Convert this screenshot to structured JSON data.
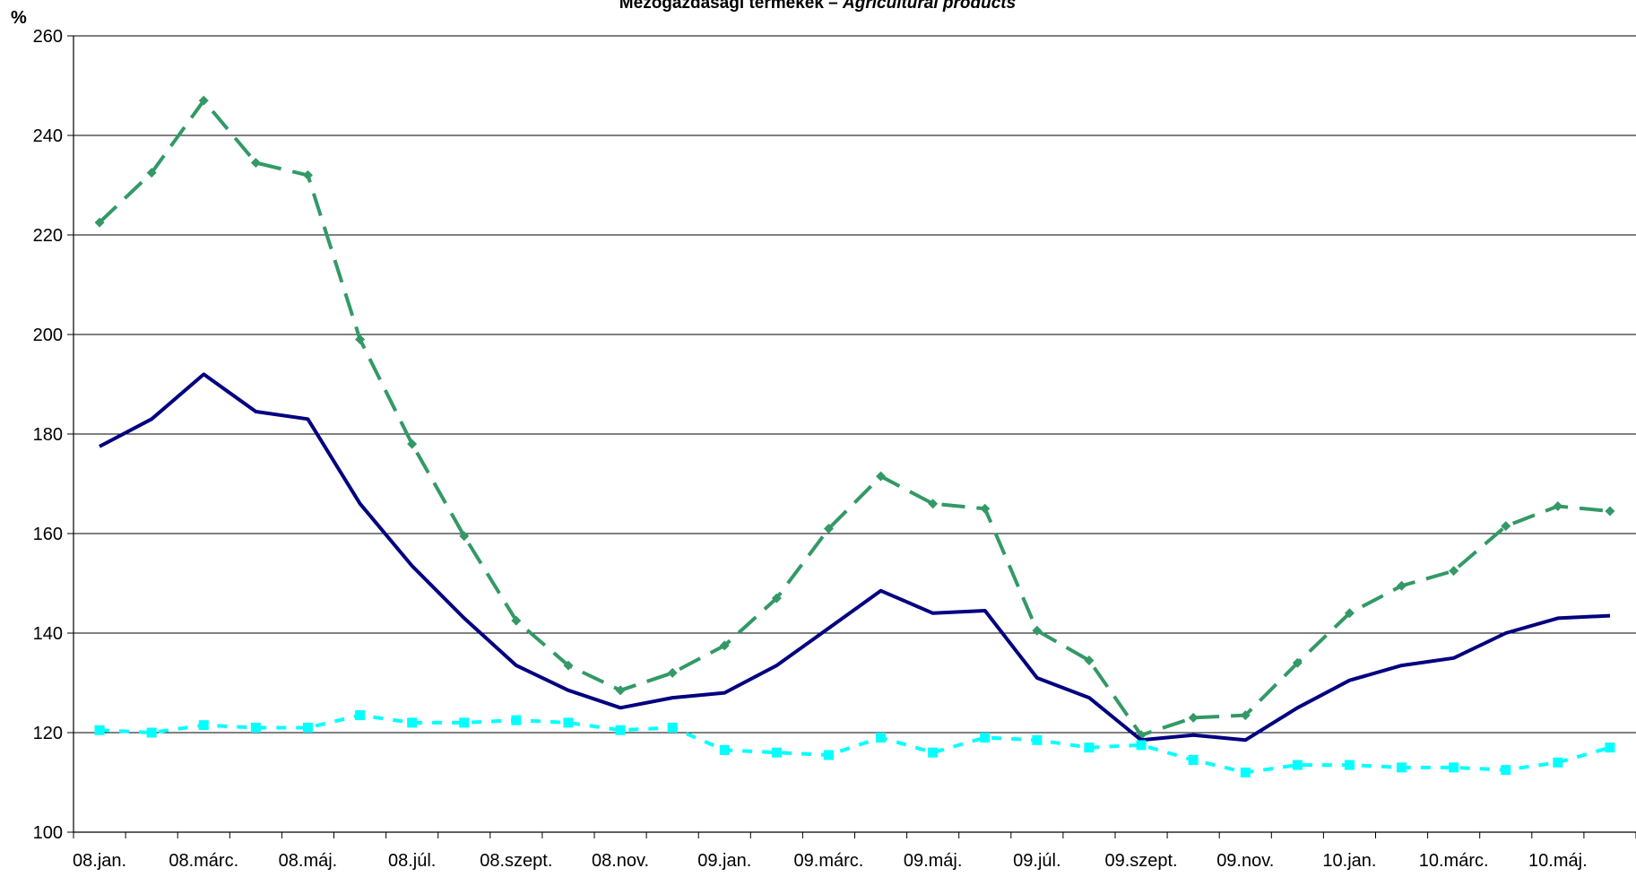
{
  "chart_data": {
    "type": "line",
    "title_hu": "Mezőgazdasági termékek – ",
    "title_en": "Agricultural products",
    "ylabel": "%",
    "ylim": [
      100,
      260
    ],
    "yticks": [
      100,
      120,
      140,
      160,
      180,
      200,
      220,
      240,
      260
    ],
    "grid": true,
    "x_tick_labels": [
      "08.jan.",
      "08.márc.",
      "08.máj.",
      "08.júl.",
      "08.szept.",
      "08.nov.",
      "09.jan.",
      "09.márc.",
      "09.máj.",
      "09.júl.",
      "09.szept.",
      "09.nov.",
      "10.jan.",
      "10.márc.",
      "10.máj."
    ],
    "n_points": 30,
    "series": [
      {
        "style": "long-dash-diamond",
        "color": "#339966",
        "values": [
          222.5,
          232.5,
          247,
          234.5,
          232,
          199,
          178,
          159.5,
          142.5,
          133.5,
          128.5,
          132,
          137.5,
          147,
          161,
          171.5,
          166,
          165,
          140.5,
          134.5,
          119.5,
          123,
          123.5,
          134,
          144,
          149.5,
          152.5,
          161.5,
          165.5,
          164.5
        ]
      },
      {
        "style": "solid",
        "color": "#000080",
        "values": [
          177.5,
          183,
          192,
          184.5,
          183,
          166,
          153.5,
          143,
          133.5,
          128.5,
          125,
          127,
          128,
          133.5,
          141,
          148.5,
          144,
          144.5,
          131,
          127,
          118.5,
          119.5,
          118.5,
          125,
          130.5,
          133.5,
          135,
          140,
          143,
          143.5
        ]
      },
      {
        "style": "short-dash-square",
        "color": "#00ffff",
        "values": [
          120.5,
          120,
          121.5,
          121,
          121,
          123.5,
          122,
          122,
          122.5,
          122,
          120.5,
          121,
          116.5,
          116,
          115.5,
          119,
          116,
          119,
          118.5,
          117,
          117.5,
          114.5,
          112,
          113.5,
          113.5,
          113,
          113,
          112.5,
          114,
          117
        ]
      }
    ]
  }
}
